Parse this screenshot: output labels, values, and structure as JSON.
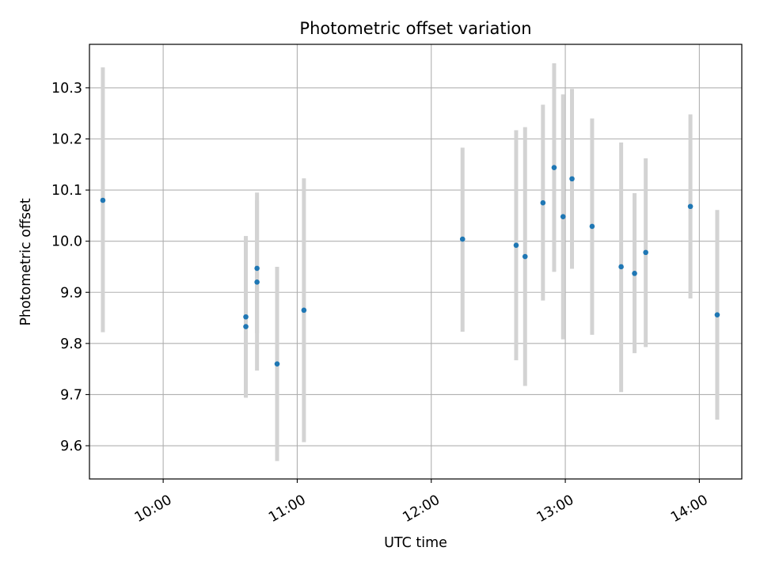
{
  "chart_data": {
    "type": "scatter",
    "title": "Photometric offset variation",
    "xlabel": "UTC time",
    "ylabel": "Photometric offset",
    "x_axis_type": "time",
    "xlim": [
      "09:27",
      "14:19"
    ],
    "ylim": [
      9.535,
      10.385
    ],
    "grid": true,
    "x_ticks": [
      "10:00",
      "11:00",
      "12:00",
      "13:00",
      "14:00"
    ],
    "y_ticks": [
      "9.6",
      "9.7",
      "9.8",
      "9.9",
      "10.0",
      "10.1",
      "10.2",
      "10.3"
    ],
    "colors": {
      "points": "#1f77b4",
      "error_bars": "#d3d3d3",
      "grid": "#b0b0b0"
    },
    "series": [
      {
        "points": [
          {
            "x": "09:33",
            "y": 10.08,
            "yerr_low": 9.822,
            "yerr_high": 10.34
          },
          {
            "x": "10:37",
            "y": 9.852,
            "yerr_low": 9.694,
            "yerr_high": 10.01
          },
          {
            "x": "10:37",
            "y": 9.833,
            "yerr_low": 9.694,
            "yerr_high": 10.01
          },
          {
            "x": "10:42",
            "y": 9.947,
            "yerr_low": 9.82,
            "yerr_high": 10.08
          },
          {
            "x": "10:42",
            "y": 9.92,
            "yerr_low": 9.747,
            "yerr_high": 10.095
          },
          {
            "x": "10:51",
            "y": 9.76,
            "yerr_low": 9.57,
            "yerr_high": 9.95
          },
          {
            "x": "11:03",
            "y": 9.865,
            "yerr_low": 9.607,
            "yerr_high": 10.123
          },
          {
            "x": "12:14",
            "y": 10.004,
            "yerr_low": 9.823,
            "yerr_high": 10.183
          },
          {
            "x": "12:38",
            "y": 9.992,
            "yerr_low": 9.767,
            "yerr_high": 10.217
          },
          {
            "x": "12:42",
            "y": 9.97,
            "yerr_low": 9.717,
            "yerr_high": 10.223
          },
          {
            "x": "12:50",
            "y": 10.075,
            "yerr_low": 9.884,
            "yerr_high": 10.267
          },
          {
            "x": "12:55",
            "y": 10.144,
            "yerr_low": 9.94,
            "yerr_high": 10.348
          },
          {
            "x": "12:59",
            "y": 10.048,
            "yerr_low": 9.808,
            "yerr_high": 10.287
          },
          {
            "x": "13:03",
            "y": 10.122,
            "yerr_low": 9.946,
            "yerr_high": 10.298
          },
          {
            "x": "13:12",
            "y": 10.029,
            "yerr_low": 9.817,
            "yerr_high": 10.24
          },
          {
            "x": "13:25",
            "y": 9.95,
            "yerr_low": 9.705,
            "yerr_high": 10.193
          },
          {
            "x": "13:31",
            "y": 9.937,
            "yerr_low": 9.781,
            "yerr_high": 10.094
          },
          {
            "x": "13:36",
            "y": 9.978,
            "yerr_low": 9.793,
            "yerr_high": 10.162
          },
          {
            "x": "13:56",
            "y": 10.068,
            "yerr_low": 9.888,
            "yerr_high": 10.248
          },
          {
            "x": "14:08",
            "y": 9.856,
            "yerr_low": 9.651,
            "yerr_high": 10.061
          }
        ]
      }
    ]
  }
}
